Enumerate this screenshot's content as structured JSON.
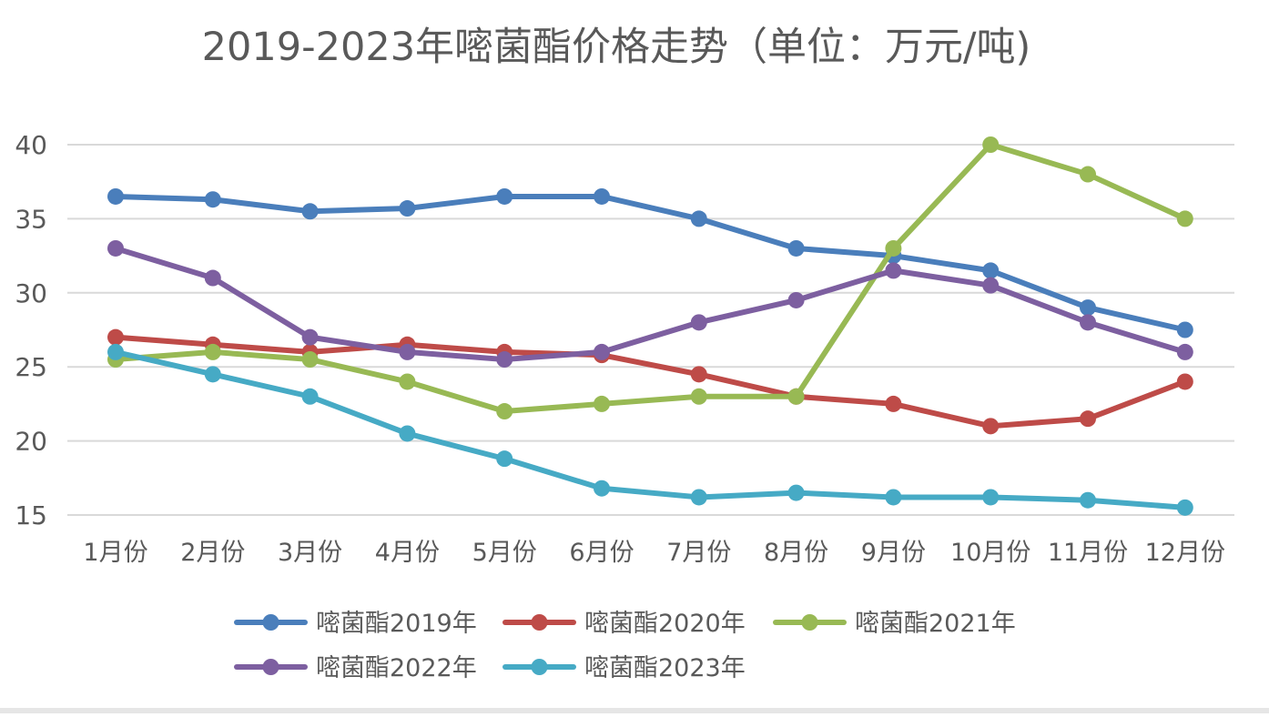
{
  "chart_data": {
    "type": "line",
    "title": "2019-2023年嘧菌酯价格走势（单位：万元/吨)",
    "xlabel": "",
    "ylabel": "",
    "categories": [
      "1月份",
      "2月份",
      "3月份",
      "4月份",
      "5月份",
      "6月份",
      "7月份",
      "8月份",
      "9月份",
      "10月份",
      "11月份",
      "12月份"
    ],
    "ylim": [
      15,
      40
    ],
    "yticks": [
      15,
      20,
      25,
      30,
      35,
      40
    ],
    "grid": true,
    "legend_position": "bottom",
    "series": [
      {
        "name": "嘧菌酯2019年",
        "color": "#4A7EBB",
        "values": [
          36.5,
          36.3,
          35.5,
          35.7,
          36.5,
          36.5,
          35.0,
          33.0,
          32.5,
          31.5,
          29.0,
          27.5
        ]
      },
      {
        "name": "嘧菌酯2020年",
        "color": "#BE4B48",
        "values": [
          27.0,
          26.5,
          26.0,
          26.5,
          26.0,
          25.8,
          24.5,
          23.0,
          22.5,
          21.0,
          21.5,
          24.0
        ]
      },
      {
        "name": "嘧菌酯2021年",
        "color": "#98B954",
        "values": [
          25.5,
          26.0,
          25.5,
          24.0,
          22.0,
          22.5,
          23.0,
          23.0,
          33.0,
          40.0,
          38.0,
          35.0
        ]
      },
      {
        "name": "嘧菌酯2022年",
        "color": "#7D5FA0",
        "values": [
          33.0,
          31.0,
          27.0,
          26.0,
          25.5,
          26.0,
          28.0,
          29.5,
          31.5,
          30.5,
          28.0,
          26.0
        ]
      },
      {
        "name": "嘧菌酯2023年",
        "color": "#46AAC5",
        "values": [
          26.0,
          24.5,
          23.0,
          20.5,
          18.8,
          16.8,
          16.2,
          16.5,
          16.2,
          16.2,
          16.0,
          15.5
        ]
      }
    ]
  }
}
